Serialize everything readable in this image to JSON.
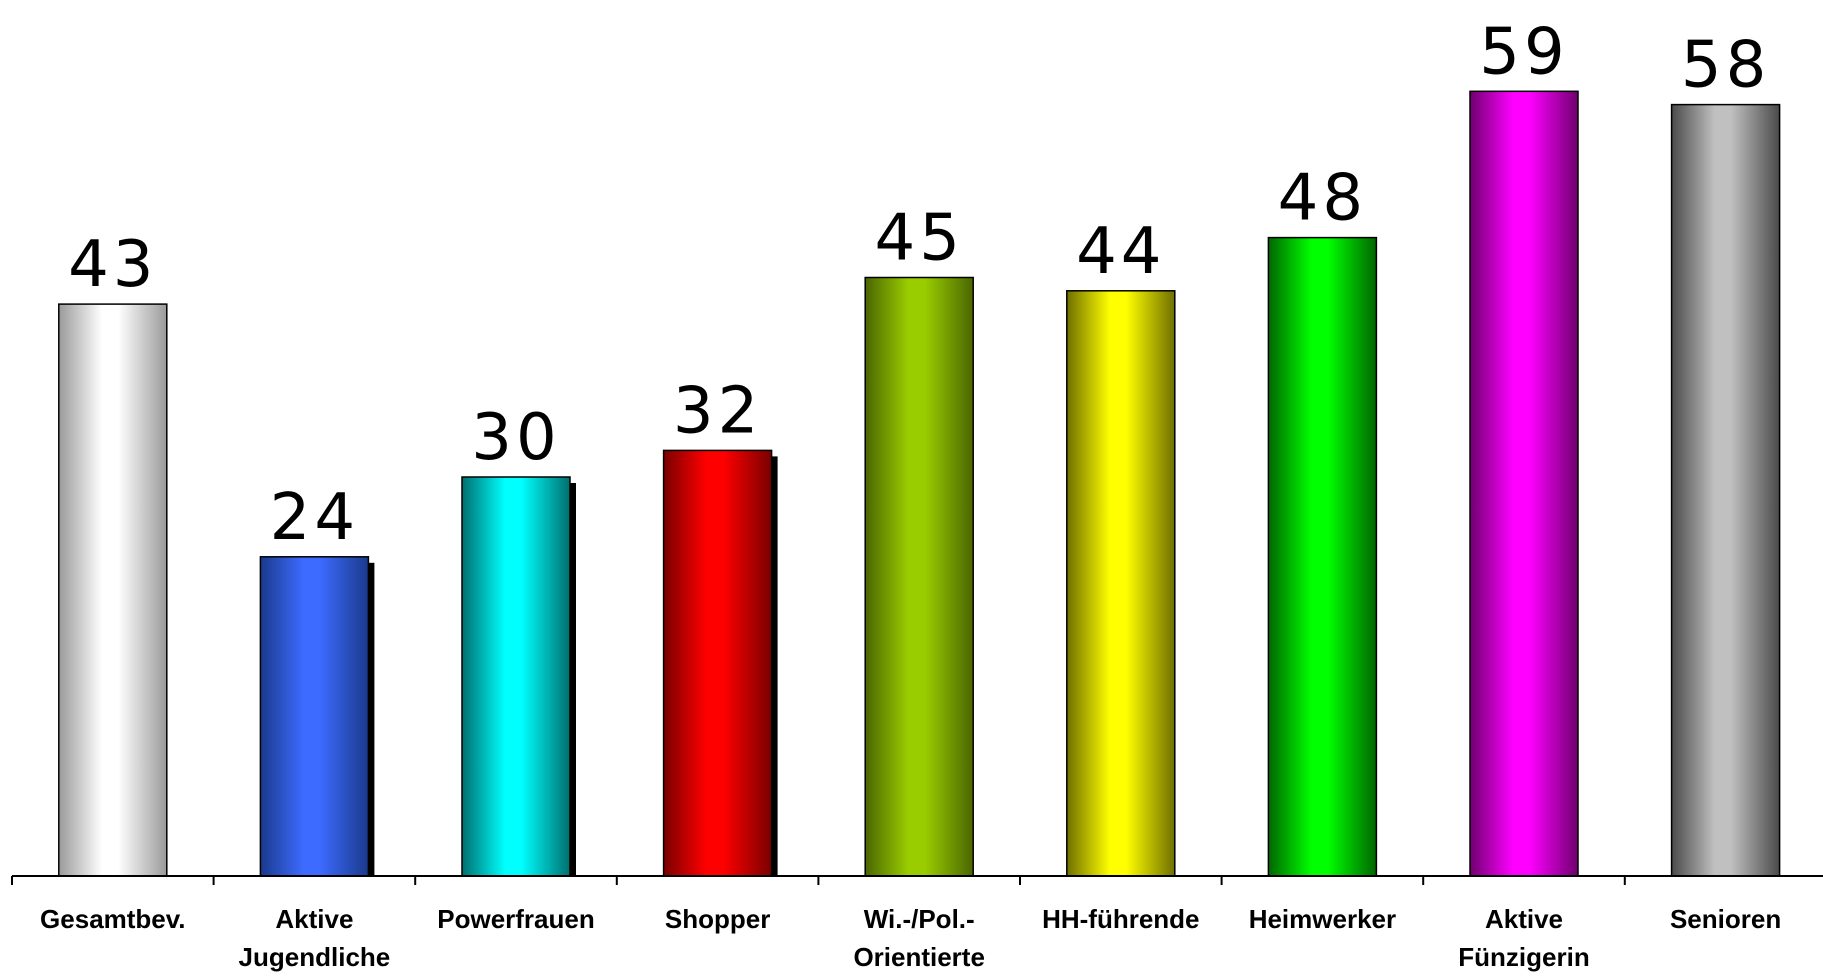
{
  "chart_data": {
    "type": "bar",
    "title": "",
    "xlabel": "",
    "ylabel": "",
    "grid": false,
    "legend": "none",
    "ylim": [
      0,
      59
    ],
    "categories": [
      [
        "Gesamtbev."
      ],
      [
        "Aktive",
        "Jugendliche"
      ],
      [
        "Powerfrauen"
      ],
      [
        "Shopper"
      ],
      [
        "Wi.-/Pol.-",
        "Orientierte"
      ],
      [
        "HH-führende"
      ],
      [
        "Heimwerker"
      ],
      [
        "Aktive",
        "Fünzigerin"
      ],
      [
        "Senioren"
      ]
    ],
    "values": [
      43,
      24,
      30,
      32,
      45,
      44,
      48,
      59,
      58
    ],
    "value_labels": [
      "43",
      "24",
      "30",
      "32",
      "45",
      "44",
      "48",
      "59",
      "58"
    ],
    "bar_colors": [
      {
        "edge": "#9a9a9a",
        "light": "#ffffff"
      },
      {
        "edge": "#1a3a8c",
        "light": "#3d6bff"
      },
      {
        "edge": "#006f6f",
        "light": "#00ffff"
      },
      {
        "edge": "#7a0000",
        "light": "#ff0000"
      },
      {
        "edge": "#4a6600",
        "light": "#9acd00"
      },
      {
        "edge": "#6f6f00",
        "light": "#ffff00"
      },
      {
        "edge": "#006600",
        "light": "#00ff00"
      },
      {
        "edge": "#6f006f",
        "light": "#ff00ff"
      },
      {
        "edge": "#4a4a4a",
        "light": "#c0c0c0"
      }
    ],
    "shadow_on": [
      false,
      true,
      true,
      true,
      false,
      false,
      false,
      false,
      false
    ]
  }
}
